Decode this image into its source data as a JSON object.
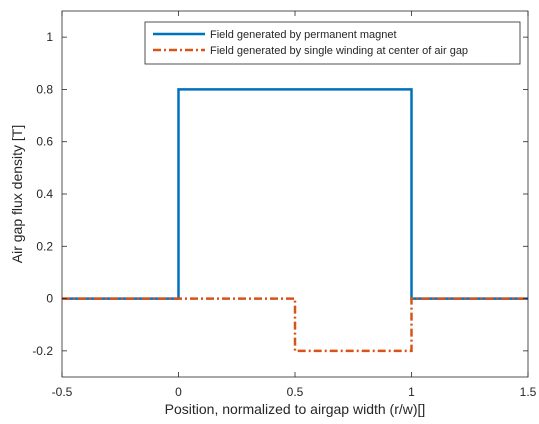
{
  "chart_data": {
    "type": "line",
    "title": "",
    "xlabel": "Position, normalized to airgap width (r/w)[]",
    "ylabel": "Air gap flux density [T]",
    "xlim": [
      -0.5,
      1.5
    ],
    "ylim": [
      -0.3,
      1.1
    ],
    "x_ticks": [
      -0.5,
      0,
      0.5,
      1,
      1.5
    ],
    "x_tick_labels": [
      "-0.5",
      "0",
      "0.5",
      "1",
      "1.5"
    ],
    "y_ticks": [
      -0.2,
      0,
      0.2,
      0.4,
      0.6,
      0.8,
      1
    ],
    "y_tick_labels": [
      "-0.2",
      "0",
      "0.2",
      "0.4",
      "0.6",
      "0.8",
      "1"
    ],
    "grid": false,
    "legend_position": "top-right",
    "series": [
      {
        "name": "Field generated by permanent magnet",
        "color": "#0072BD",
        "style": "solid",
        "x": [
          -0.5,
          0,
          0,
          1,
          1,
          1.5
        ],
        "y": [
          0,
          0,
          0.8,
          0.8,
          0,
          0
        ]
      },
      {
        "name": "Field generated by single winding at center of air gap",
        "color": "#D95319",
        "style": "dashdot",
        "x": [
          -0.5,
          0.5,
          0.5,
          1,
          1,
          1.5
        ],
        "y": [
          0,
          0,
          -0.2,
          -0.2,
          0,
          0
        ]
      }
    ]
  }
}
